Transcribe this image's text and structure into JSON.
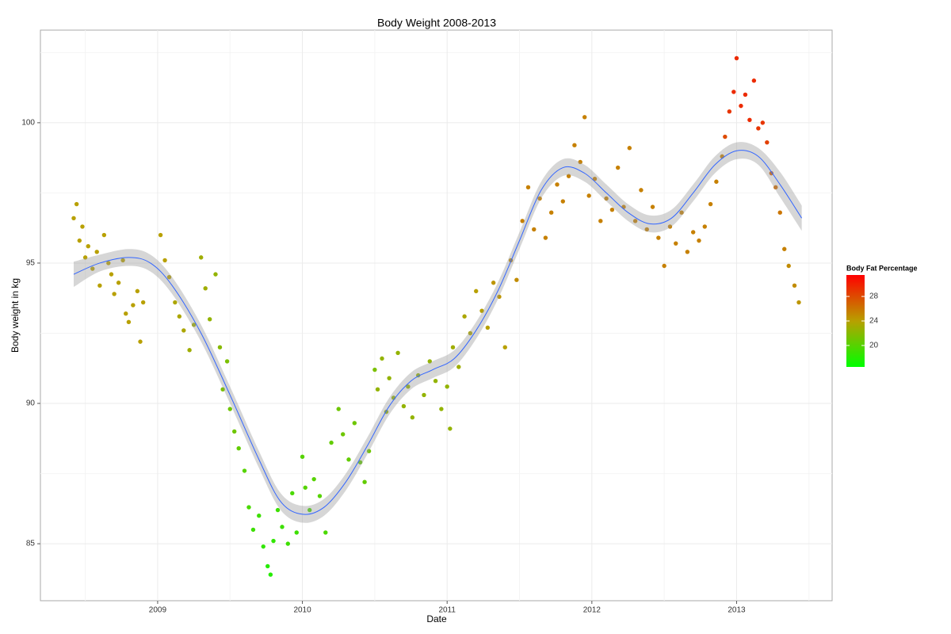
{
  "chart_data": {
    "type": "scatter",
    "title": "Body Weight 2008-2013",
    "x_label": "Date",
    "y_label": "Body weight in kg",
    "xlim": [
      2008.19,
      2013.66
    ],
    "xticks": [
      2009,
      2010,
      2011,
      2012,
      2013
    ],
    "ylim": [
      82.97,
      103.3
    ],
    "yticks": [
      85,
      90,
      95,
      100
    ],
    "grid": true,
    "points": {
      "x": [
        2008.42,
        2008.44,
        2008.46,
        2008.48,
        2008.5,
        2008.52,
        2008.55,
        2008.58,
        2008.6,
        2008.63,
        2008.66,
        2008.68,
        2008.7,
        2008.73,
        2008.76,
        2008.78,
        2008.8,
        2008.83,
        2008.86,
        2008.88,
        2008.9,
        2009.02,
        2009.05,
        2009.08,
        2009.12,
        2009.15,
        2009.18,
        2009.22,
        2009.25,
        2009.3,
        2009.33,
        2009.36,
        2009.4,
        2009.43,
        2009.45,
        2009.48,
        2009.5,
        2009.53,
        2009.56,
        2009.6,
        2009.63,
        2009.66,
        2009.7,
        2009.73,
        2009.76,
        2009.78,
        2009.8,
        2009.83,
        2009.86,
        2009.9,
        2009.93,
        2009.96,
        2010.0,
        2010.02,
        2010.05,
        2010.08,
        2010.12,
        2010.16,
        2010.2,
        2010.25,
        2010.28,
        2010.32,
        2010.36,
        2010.4,
        2010.43,
        2010.46,
        2010.5,
        2010.52,
        2010.55,
        2010.58,
        2010.6,
        2010.63,
        2010.66,
        2010.7,
        2010.73,
        2010.76,
        2010.8,
        2010.84,
        2010.88,
        2010.92,
        2010.96,
        2011.0,
        2011.02,
        2011.04,
        2011.08,
        2011.12,
        2011.16,
        2011.2,
        2011.24,
        2011.28,
        2011.32,
        2011.36,
        2011.4,
        2011.44,
        2011.48,
        2011.52,
        2011.56,
        2011.6,
        2011.64,
        2011.68,
        2011.72,
        2011.76,
        2011.8,
        2011.84,
        2011.88,
        2011.92,
        2011.95,
        2011.98,
        2012.02,
        2012.06,
        2012.1,
        2012.14,
        2012.18,
        2012.22,
        2012.26,
        2012.3,
        2012.34,
        2012.38,
        2012.42,
        2012.46,
        2012.5,
        2012.54,
        2012.58,
        2012.62,
        2012.66,
        2012.7,
        2012.74,
        2012.78,
        2012.82,
        2012.86,
        2012.9,
        2012.92,
        2012.95,
        2012.98,
        2013.0,
        2013.03,
        2013.06,
        2013.09,
        2013.12,
        2013.15,
        2013.18,
        2013.21,
        2013.24,
        2013.27,
        2013.3,
        2013.33,
        2013.36,
        2013.4,
        2013.43
      ],
      "values": [
        96.6,
        97.1,
        95.8,
        96.3,
        95.2,
        95.6,
        94.8,
        95.4,
        94.2,
        96.0,
        95.0,
        94.6,
        93.9,
        94.3,
        95.1,
        93.2,
        92.9,
        93.5,
        94.0,
        92.2,
        93.6,
        96.0,
        95.1,
        94.5,
        93.6,
        93.1,
        92.6,
        91.9,
        92.8,
        95.2,
        94.1,
        93.0,
        94.6,
        92.0,
        90.5,
        91.5,
        89.8,
        89.0,
        88.4,
        87.6,
        86.3,
        85.5,
        86.0,
        84.9,
        84.2,
        83.9,
        85.1,
        86.2,
        85.6,
        85.0,
        86.8,
        85.4,
        88.1,
        87.0,
        86.2,
        87.3,
        86.7,
        85.4,
        88.6,
        89.8,
        88.9,
        88.0,
        89.3,
        87.9,
        87.2,
        88.3,
        91.2,
        90.5,
        91.6,
        89.7,
        90.9,
        90.2,
        91.8,
        89.9,
        90.6,
        89.5,
        91.0,
        90.3,
        91.5,
        90.8,
        89.8,
        90.6,
        89.1,
        92.0,
        91.3,
        93.1,
        92.5,
        94.0,
        93.3,
        92.7,
        94.3,
        93.8,
        92.0,
        95.1,
        94.4,
        96.5,
        97.7,
        96.2,
        97.3,
        95.9,
        96.8,
        97.8,
        97.2,
        98.1,
        99.2,
        98.6,
        100.2,
        97.4,
        98.0,
        96.5,
        97.3,
        96.9,
        98.4,
        97.0,
        99.1,
        96.5,
        97.6,
        96.2,
        97.0,
        95.9,
        94.9,
        96.3,
        95.7,
        96.8,
        95.4,
        96.1,
        95.8,
        96.3,
        97.1,
        97.9,
        98.8,
        99.5,
        100.4,
        101.1,
        102.3,
        100.6,
        101.0,
        100.1,
        101.5,
        99.8,
        100.0,
        99.3,
        98.2,
        97.7,
        96.8,
        95.5,
        94.9,
        94.2,
        93.6
      ],
      "fat": [
        24,
        24,
        24,
        24,
        24,
        24,
        24,
        24,
        24,
        24,
        24,
        24,
        24,
        24,
        24,
        24,
        24,
        24,
        24,
        24,
        24,
        24,
        24,
        24,
        23.5,
        23.5,
        23.5,
        23,
        23,
        23,
        23,
        22.5,
        22.5,
        22,
        21.5,
        21.5,
        21,
        21,
        20.5,
        20,
        19.5,
        19,
        19,
        18.5,
        18,
        18,
        18.5,
        19,
        19,
        19,
        19.5,
        19,
        20,
        20,
        19.5,
        20,
        20,
        19.5,
        20.5,
        21,
        21,
        20.5,
        21,
        20.5,
        20.5,
        21,
        21.5,
        22.5,
        22.5,
        22.5,
        22.5,
        22.5,
        22.5,
        22.5,
        22.5,
        22.5,
        22.5,
        22.5,
        22.5,
        22.5,
        22.5,
        22.5,
        22.5,
        23,
        23,
        23.5,
        23.5,
        24,
        24,
        24,
        24.5,
        24.5,
        24,
        25,
        25,
        25.5,
        25.5,
        25.5,
        25.5,
        25.5,
        25.5,
        25.5,
        25.5,
        25.5,
        25.5,
        25.5,
        25.5,
        25.5,
        25.5,
        25.5,
        25.5,
        25.5,
        25.5,
        25.5,
        25.5,
        25.5,
        25.5,
        25.5,
        25.5,
        25.5,
        25.5,
        25.5,
        25.5,
        25.5,
        25.5,
        25.5,
        25.5,
        25.5,
        25.5,
        25.5,
        25.5,
        28,
        29,
        29.5,
        29.5,
        29.5,
        29.5,
        29.5,
        29.5,
        29,
        29,
        28.5,
        27,
        26.5,
        26,
        25.5,
        25,
        25,
        24.5
      ]
    },
    "smooth": {
      "color": "#3366ff",
      "band_color": "#999999",
      "x": [
        2008.42,
        2008.6,
        2008.8,
        2008.95,
        2009.1,
        2009.3,
        2009.5,
        2009.7,
        2009.85,
        2010.0,
        2010.15,
        2010.3,
        2010.45,
        2010.6,
        2010.75,
        2010.9,
        2011.05,
        2011.2,
        2011.35,
        2011.5,
        2011.65,
        2011.8,
        2011.95,
        2012.1,
        2012.25,
        2012.4,
        2012.55,
        2012.7,
        2012.85,
        2013.0,
        2013.15,
        2013.3,
        2013.45
      ],
      "values": [
        94.6,
        95.0,
        95.2,
        95.0,
        94.2,
        92.5,
        90.3,
        88.0,
        86.5,
        86.05,
        86.3,
        87.2,
        88.5,
        89.9,
        90.8,
        91.2,
        91.6,
        92.6,
        94.0,
        95.8,
        97.6,
        98.4,
        98.2,
        97.5,
        96.8,
        96.4,
        96.6,
        97.5,
        98.5,
        99.0,
        98.8,
        97.8,
        96.6
      ],
      "lower": [
        94.15,
        94.7,
        94.9,
        94.7,
        93.9,
        92.2,
        90.0,
        87.7,
        86.2,
        85.75,
        86.0,
        86.9,
        88.2,
        89.6,
        90.5,
        90.9,
        91.3,
        92.3,
        93.7,
        95.5,
        97.3,
        98.1,
        97.9,
        97.2,
        96.5,
        96.1,
        96.3,
        97.2,
        98.2,
        98.7,
        98.5,
        97.35,
        96.15
      ],
      "upper": [
        95.05,
        95.3,
        95.5,
        95.3,
        94.5,
        92.8,
        90.6,
        88.3,
        86.8,
        86.35,
        86.6,
        87.5,
        88.8,
        90.2,
        91.1,
        91.5,
        91.9,
        92.9,
        94.3,
        96.1,
        97.9,
        98.7,
        98.5,
        97.8,
        97.1,
        96.7,
        96.9,
        97.8,
        98.8,
        99.3,
        99.1,
        98.25,
        97.05
      ]
    },
    "color_legend": {
      "title": "Body Fat Percentage",
      "limits": [
        16.5,
        31.5
      ],
      "ticks": [
        20,
        24,
        28
      ],
      "low": "#00ff00",
      "mid": "#b8a000",
      "high": "#ff0000"
    }
  }
}
